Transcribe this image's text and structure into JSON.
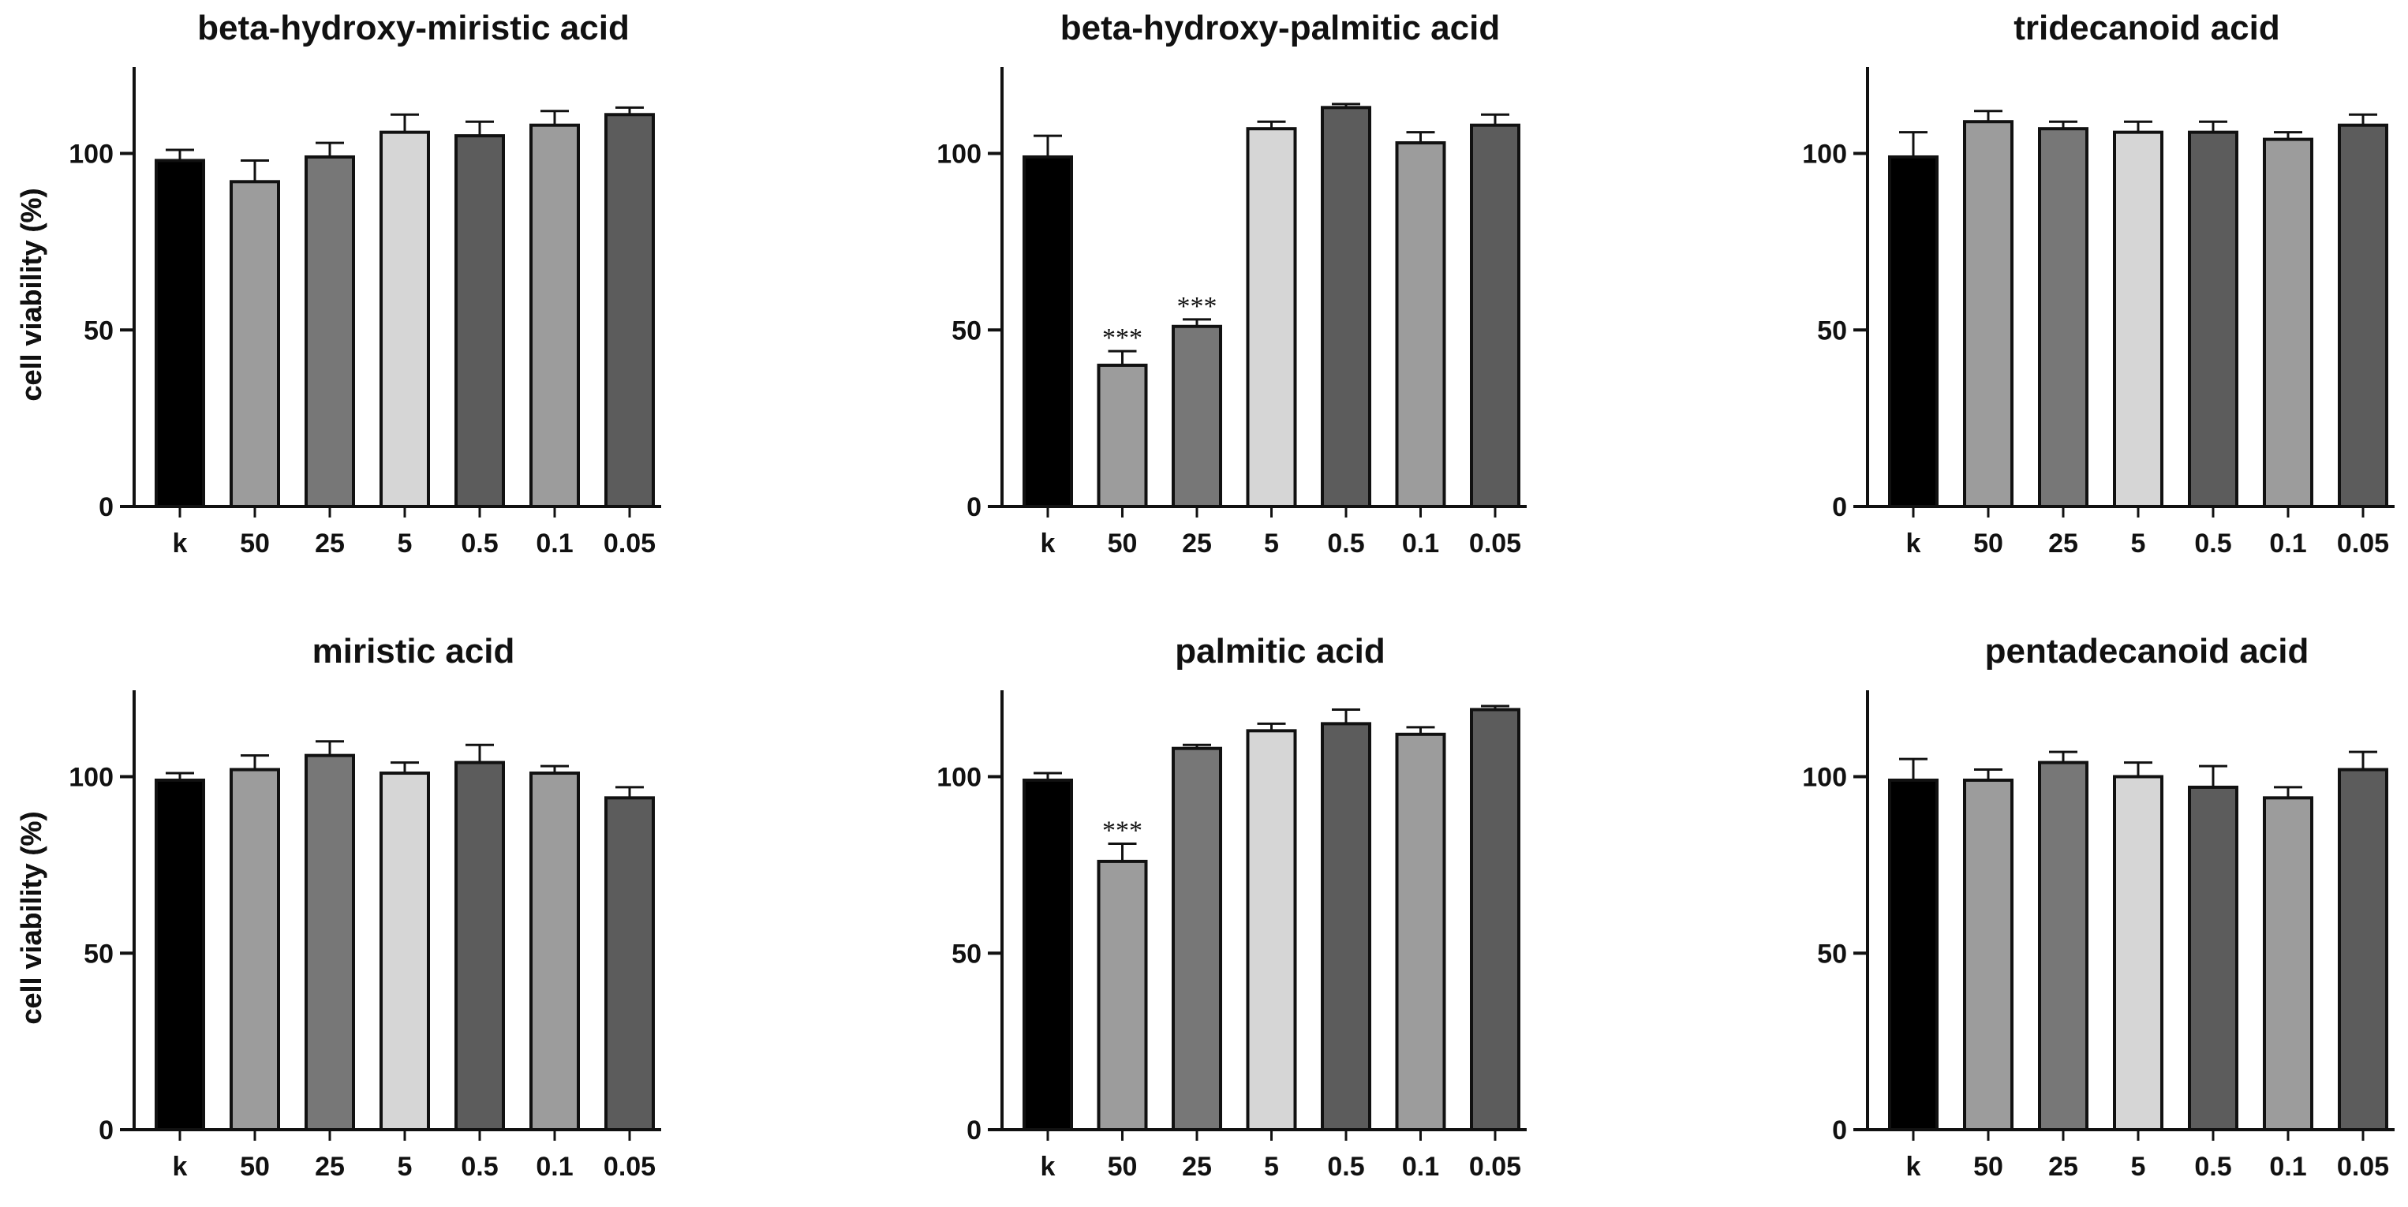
{
  "figure": {
    "bar_colors": [
      "#000000",
      "#9c9c9c",
      "#777777",
      "#d6d6d6",
      "#5c5c5c",
      "#9c9c9c",
      "#5c5c5c"
    ]
  },
  "chart_data": [
    {
      "type": "bar",
      "title": "beta-hydroxy-miristic acid",
      "ylabel": "cell viability (%)",
      "xlabel": "",
      "categories": [
        "k",
        "50",
        "25",
        "5",
        "0.5",
        "0.1",
        "0.05"
      ],
      "values": [
        98,
        92,
        99,
        106,
        105,
        108,
        111
      ],
      "errors": [
        3,
        6,
        4,
        5,
        4,
        4,
        2
      ],
      "annotations": [
        "",
        "",
        "",
        "",
        "",
        "",
        ""
      ],
      "ylim": [
        0,
        120
      ],
      "yticks": [
        0,
        50,
        100
      ]
    },
    {
      "type": "bar",
      "title": "beta-hydroxy-palmitic acid",
      "ylabel": "cell viability (%)",
      "xlabel": "",
      "categories": [
        "k",
        "50",
        "25",
        "5",
        "0.5",
        "0.1",
        "0.05"
      ],
      "values": [
        99,
        40,
        51,
        107,
        113,
        103,
        108
      ],
      "errors": [
        6,
        4,
        2,
        2,
        1,
        3,
        3
      ],
      "annotations": [
        "",
        "***",
        "***",
        "",
        "",
        "",
        ""
      ],
      "ylim": [
        0,
        120
      ],
      "yticks": [
        0,
        50,
        100
      ]
    },
    {
      "type": "bar",
      "title": "tridecanoid acid",
      "ylabel": "cell viability (%)",
      "xlabel": "",
      "categories": [
        "k",
        "50",
        "25",
        "5",
        "0.5",
        "0.1",
        "0.05"
      ],
      "values": [
        99,
        109,
        107,
        106,
        106,
        104,
        108
      ],
      "errors": [
        7,
        3,
        2,
        3,
        3,
        2,
        3
      ],
      "annotations": [
        "",
        "",
        "",
        "",
        "",
        "",
        ""
      ],
      "ylim": [
        0,
        120
      ],
      "yticks": [
        0,
        50,
        100
      ]
    },
    {
      "type": "bar",
      "title": "miristic acid",
      "ylabel": "cell viability (%)",
      "xlabel": "",
      "categories": [
        "k",
        "50",
        "25",
        "5",
        "0.5",
        "0.1",
        "0.05"
      ],
      "values": [
        99,
        102,
        106,
        101,
        104,
        101,
        94
      ],
      "errors": [
        2,
        4,
        4,
        3,
        5,
        2,
        3
      ],
      "annotations": [
        "",
        "",
        "",
        "",
        "",
        "",
        ""
      ],
      "ylim": [
        0,
        120
      ],
      "yticks": [
        0,
        50,
        100
      ]
    },
    {
      "type": "bar",
      "title": "palmitic acid",
      "ylabel": "cell viability (%)",
      "xlabel": "",
      "categories": [
        "k",
        "50",
        "25",
        "5",
        "0.5",
        "0.1",
        "0.05"
      ],
      "values": [
        99,
        76,
        108,
        113,
        115,
        112,
        119
      ],
      "errors": [
        2,
        5,
        1,
        2,
        4,
        2,
        1
      ],
      "annotations": [
        "",
        "***",
        "",
        "",
        "",
        "",
        ""
      ],
      "ylim": [
        0,
        120
      ],
      "yticks": [
        0,
        50,
        100
      ]
    },
    {
      "type": "bar",
      "title": "pentadecanoid acid",
      "ylabel": "cell viability (%)",
      "xlabel": "",
      "categories": [
        "k",
        "50",
        "25",
        "5",
        "0.5",
        "0.1",
        "0.05"
      ],
      "values": [
        99,
        99,
        104,
        100,
        97,
        94,
        102
      ],
      "errors": [
        6,
        3,
        3,
        4,
        6,
        3,
        5
      ],
      "annotations": [
        "",
        "",
        "",
        "",
        "",
        "",
        ""
      ],
      "ylim": [
        0,
        120
      ],
      "yticks": [
        0,
        50,
        100
      ]
    }
  ]
}
